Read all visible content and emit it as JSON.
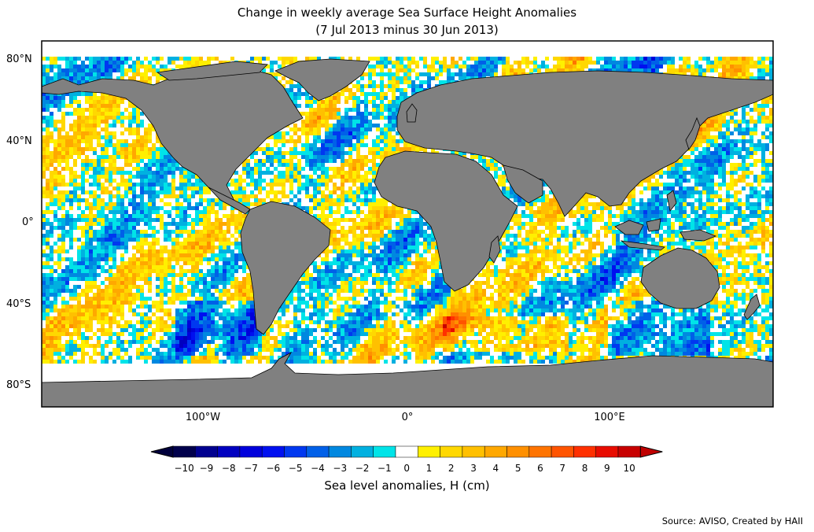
{
  "title": "Change in weekly average Sea Surface Height Anomalies",
  "subtitle": "(7 Jul 2013 minus 30 Jun 2013)",
  "map": {
    "lat_ticks": [
      "80°N",
      "40°N",
      "0°",
      "40°S",
      "80°S"
    ],
    "lon_ticks": [
      "100°W",
      "0°",
      "100°E"
    ],
    "land_color": "#808080",
    "no_data_color": "#ffffff"
  },
  "colorbar": {
    "label": "Sea level anomalies, H (cm)",
    "ticks": [
      "−10",
      "−9",
      "−8",
      "−7",
      "−6",
      "−5",
      "−4",
      "−3",
      "−2",
      "−1",
      "0",
      "1",
      "2",
      "3",
      "4",
      "5",
      "6",
      "7",
      "8",
      "9",
      "10"
    ],
    "colors": [
      "#00004c",
      "#000090",
      "#0000c0",
      "#0000dc",
      "#0010f0",
      "#0038f0",
      "#0060e8",
      "#0088e0",
      "#00b0e0",
      "#00e4e8",
      "#ffffff",
      "#fff000",
      "#ffd800",
      "#ffc000",
      "#ffa800",
      "#ff9000",
      "#ff7400",
      "#ff5400",
      "#ff3000",
      "#e80c00",
      "#c80000"
    ],
    "under_color": "#00003c",
    "over_color": "#c00000"
  },
  "source": "Source: AVISO, Created by HAII"
}
